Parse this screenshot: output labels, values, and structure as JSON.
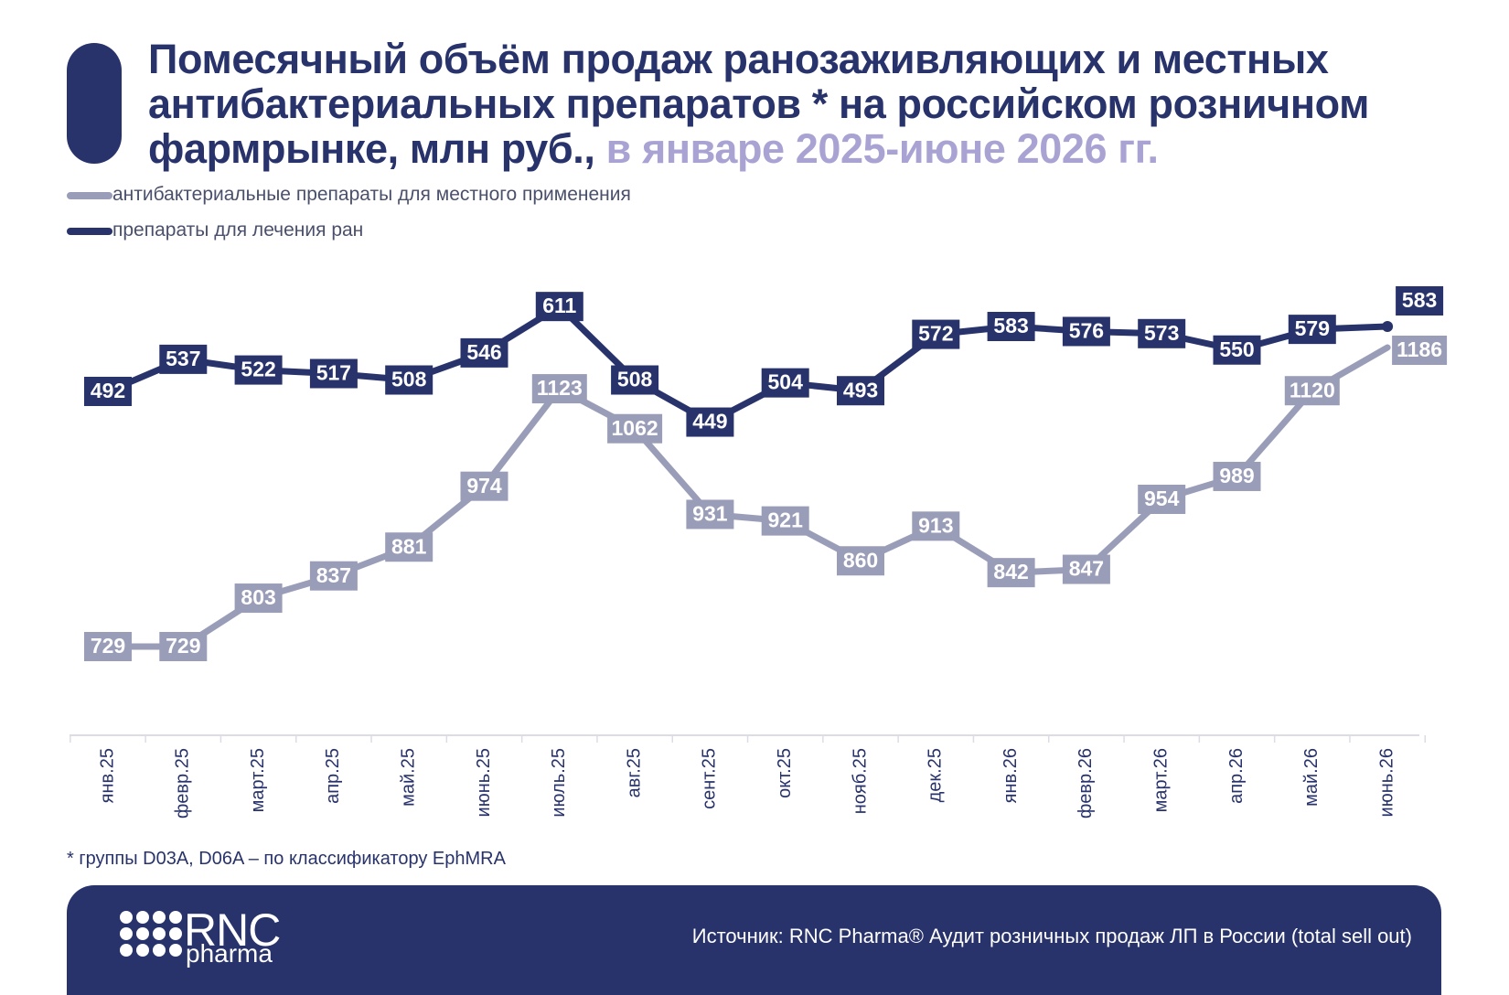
{
  "header": {
    "title_main": "Помесячный объём продаж ранозаживляющих и местных антибактериальных препаратов * на российском розничном фармрынке, млн руб.,",
    "title_accent": "в январе 2025-июне 2026 гг."
  },
  "colors": {
    "dark": "#28336b",
    "gray": "#9a9db8",
    "accent": "#a9a3d3"
  },
  "chart_data": {
    "type": "line",
    "categories": [
      "янв.25",
      "февр.25",
      "март.25",
      "апр.25",
      "май.25",
      "июнь.25",
      "июль.25",
      "авг.25",
      "сент.25",
      "окт.25",
      "нояб.25",
      "дек.25",
      "янв.26",
      "февр.26",
      "март.26",
      "апр.26",
      "май.26",
      "июнь.26"
    ],
    "series": [
      {
        "name": "антибактериальные препараты для местного применения",
        "color": "#9a9db8",
        "values": [
          729,
          729,
          803,
          837,
          881,
          974,
          1123,
          1062,
          931,
          921,
          860,
          913,
          842,
          847,
          954,
          989,
          1120,
          1186
        ]
      },
      {
        "name": "препараты для лечения ран",
        "color": "#28336b",
        "values": [
          492,
          537,
          522,
          517,
          508,
          546,
          611,
          508,
          449,
          504,
          493,
          572,
          583,
          576,
          573,
          550,
          579,
          583
        ]
      }
    ],
    "legend_position": "top-left",
    "grid": false,
    "data_labels": true
  },
  "footnote": "* группы D03A, D06A – по классификатору EphMRA",
  "footer": {
    "logo_main": "RNC",
    "logo_sub": "pharma",
    "source": "Источник: RNC Pharma® Аудит розничных продаж ЛП в России (total sell out)"
  }
}
